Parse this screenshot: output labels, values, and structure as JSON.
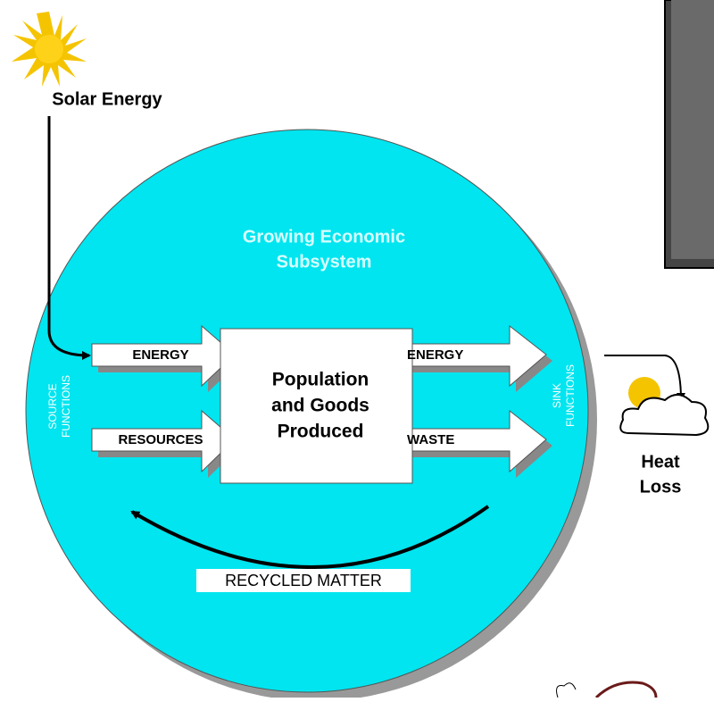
{
  "solar_label": "Solar Energy",
  "subsystem_title": [
    "Growing Economic",
    "Subsystem"
  ],
  "source_functions": [
    "SOURCE",
    "FUNCTIONS"
  ],
  "inputs": [
    "ENERGY",
    "RESOURCES"
  ],
  "center_box": [
    "Population",
    "and Goods",
    "Produced"
  ],
  "outputs": [
    "ENERGY",
    "WASTE"
  ],
  "sink_functions": [
    "SINK",
    "FUNCTIONS"
  ],
  "heat_loss": [
    "Heat",
    "Loss"
  ],
  "recycled_label": "RECYCLED MATTER"
}
